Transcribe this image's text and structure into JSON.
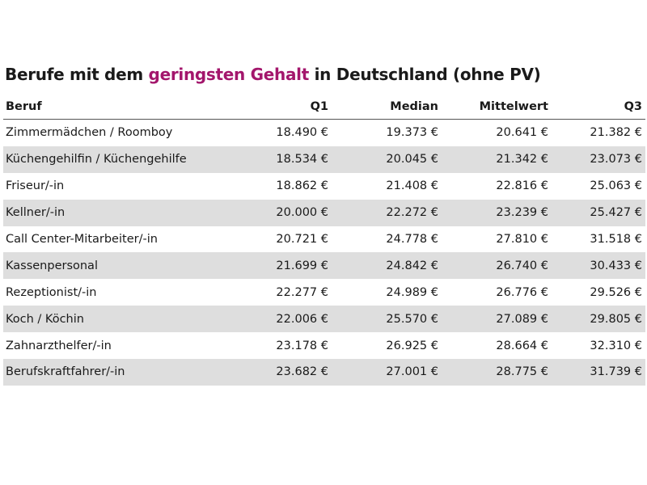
{
  "title": {
    "prefix": "Berufe mit dem ",
    "highlight": "geringsten Gehalt",
    "suffix": " in Deutschland (ohne PV)"
  },
  "colors": {
    "accent": "#a3166c",
    "stripe": "#dedede",
    "text": "#1a1a1a"
  },
  "chart_data": {
    "type": "table",
    "columns": [
      "Beruf",
      "Q1",
      "Median",
      "Mittelwert",
      "Q3"
    ],
    "rows": [
      [
        "Zimmermädchen / Roomboy",
        "18.490 €",
        "19.373 €",
        "20.641 €",
        "21.382 €"
      ],
      [
        "Küchengehilfin / Küchengehilfe",
        "18.534 €",
        "20.045 €",
        "21.342 €",
        "23.073 €"
      ],
      [
        "Friseur/-in",
        "18.862 €",
        "21.408 €",
        "22.816 €",
        "25.063 €"
      ],
      [
        "Kellner/-in",
        "20.000 €",
        "22.272 €",
        "23.239 €",
        "25.427 €"
      ],
      [
        "Call Center-Mitarbeiter/-in",
        "20.721 €",
        "24.778 €",
        "27.810 €",
        "31.518 €"
      ],
      [
        "Kassenpersonal",
        "21.699 €",
        "24.842 €",
        "26.740 €",
        "30.433 €"
      ],
      [
        "Rezeptionist/-in",
        "22.277 €",
        "24.989 €",
        "26.776 €",
        "29.526 €"
      ],
      [
        "Koch / Köchin",
        "22.006 €",
        "25.570 €",
        "27.089 €",
        "29.805 €"
      ],
      [
        "Zahnarzthelfer/-in",
        "23.178 €",
        "26.925 €",
        "28.664 €",
        "32.310 €"
      ],
      [
        "Berufskraftfahrer/-in",
        "23.682 €",
        "27.001 €",
        "28.775 €",
        "31.739 €"
      ]
    ]
  }
}
